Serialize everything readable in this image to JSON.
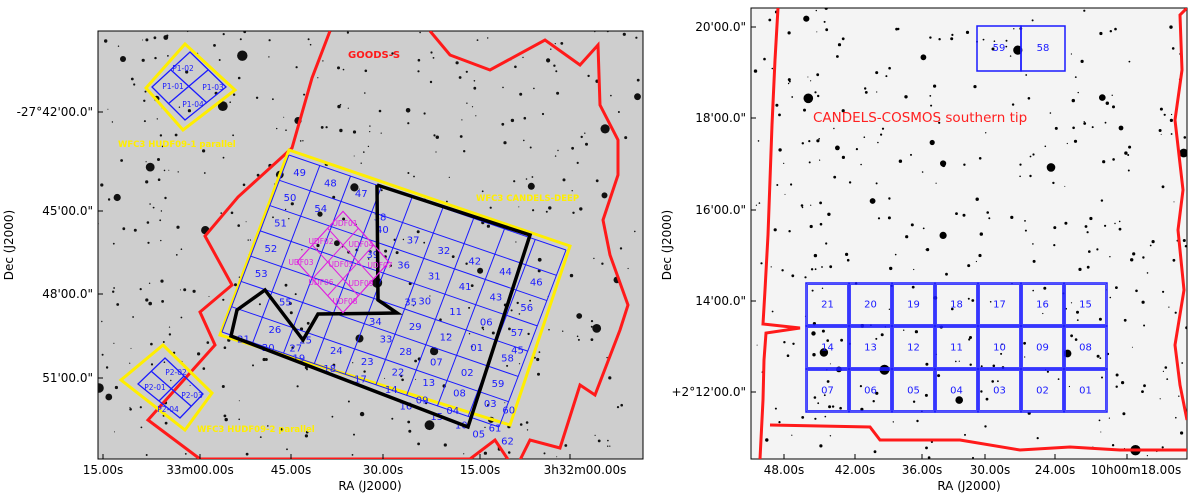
{
  "left_panel": {
    "field_label": "GOODS-S",
    "yellow_labels": {
      "parallel1": "WFC3 HUDF09-1 parallel",
      "deep": "WFC3 CANDELS-DEEP",
      "parallel2": "WFC3 HUDF09-2 parallel"
    },
    "y_ticks": [
      "-27°42'00.0\"",
      "45'00.0\"",
      "48'00.0\"",
      "51'00.0\""
    ],
    "x_ticks": [
      "15.00s",
      "33m00.00s",
      "45.00s",
      "30.00s",
      "15.00s",
      "3h32m00.00s"
    ],
    "x_axis_label": "RA (J2000)",
    "y_axis_label": "Dec (J2000)",
    "p1_tiles": [
      "P1-01",
      "P1-02",
      "P1-03",
      "P1-04"
    ],
    "p2_tiles": [
      "P2-01",
      "P2-02",
      "P2-03",
      "P2-04"
    ],
    "deep_tiles": [
      [
        "49",
        "48",
        "47",
        "",
        "",
        "",
        "",
        "",
        ""
      ],
      [
        "50",
        "54",
        "40",
        "37",
        "32",
        "42",
        "44",
        "46",
        "56"
      ],
      [
        "51",
        "",
        "",
        "39",
        "36",
        "31",
        "41",
        "43",
        "45",
        "57"
      ],
      [
        "52",
        "",
        "",
        "",
        "",
        "30",
        "11",
        "06",
        "01",
        "58"
      ],
      [
        "53",
        "",
        "",
        "",
        "29",
        "12",
        "07",
        "02",
        "59"
      ],
      [
        "55",
        "",
        "34",
        "33",
        "28",
        "13",
        "08",
        "03",
        "60"
      ],
      [
        "26",
        "25",
        "24",
        "23",
        "22",
        "14",
        "09",
        "04",
        "61"
      ],
      [
        "21",
        "20",
        "19",
        "18",
        "17",
        "16",
        "15",
        "10",
        "05",
        "62"
      ]
    ],
    "deep_numbers": [
      "49",
      "48",
      "47",
      "50",
      "54",
      "40",
      "37",
      "32",
      "42",
      "44",
      "46",
      "56",
      "51",
      "39",
      "36",
      "31",
      "41",
      "43",
      "45",
      "57",
      "52",
      "30",
      "11",
      "06",
      "01",
      "58",
      "53",
      "35",
      "29",
      "12",
      "07",
      "02",
      "59",
      "55",
      "34",
      "33",
      "28",
      "13",
      "08",
      "03",
      "60",
      "26",
      "25",
      "24",
      "23",
      "22",
      "14",
      "09",
      "04",
      "61",
      "21",
      "20",
      "19",
      "18",
      "17",
      "16",
      "15",
      "10",
      "05",
      "62",
      "27",
      "38"
    ],
    "udf_tiles": [
      "UDF01",
      "UDF02",
      "UDF04",
      "UDF03",
      "UDF05",
      "UDF07",
      "UDF06",
      "UDF08",
      "UDF09"
    ]
  },
  "right_panel": {
    "field_label": "CANDELS-COSMOS southern tip",
    "y_ticks": [
      "20'00.0\"",
      "18'00.0\"",
      "16'00.0\"",
      "14'00.0\"",
      "+2°12'00.0\""
    ],
    "x_ticks": [
      "48.00s",
      "42.00s",
      "36.00s",
      "30.00s",
      "24.00s",
      "10h00m18.00s"
    ],
    "x_axis_label": "RA (J2000)",
    "y_axis_label": "Dec (J2000)",
    "top_tiles": [
      "59",
      "58"
    ],
    "grid_rows": [
      [
        "21",
        "20",
        "19",
        "18",
        "17",
        "16",
        "15"
      ],
      [
        "14",
        "13",
        "12",
        "11",
        "10",
        "09",
        "08"
      ],
      [
        "07",
        "06",
        "05",
        "04",
        "03",
        "02",
        "01"
      ]
    ]
  },
  "colors": {
    "red": "#ff1a1a",
    "yellow": "#ffee00",
    "blue": "#1a1aff",
    "magenta": "#e020e0",
    "sky": "#cfcfcf"
  }
}
